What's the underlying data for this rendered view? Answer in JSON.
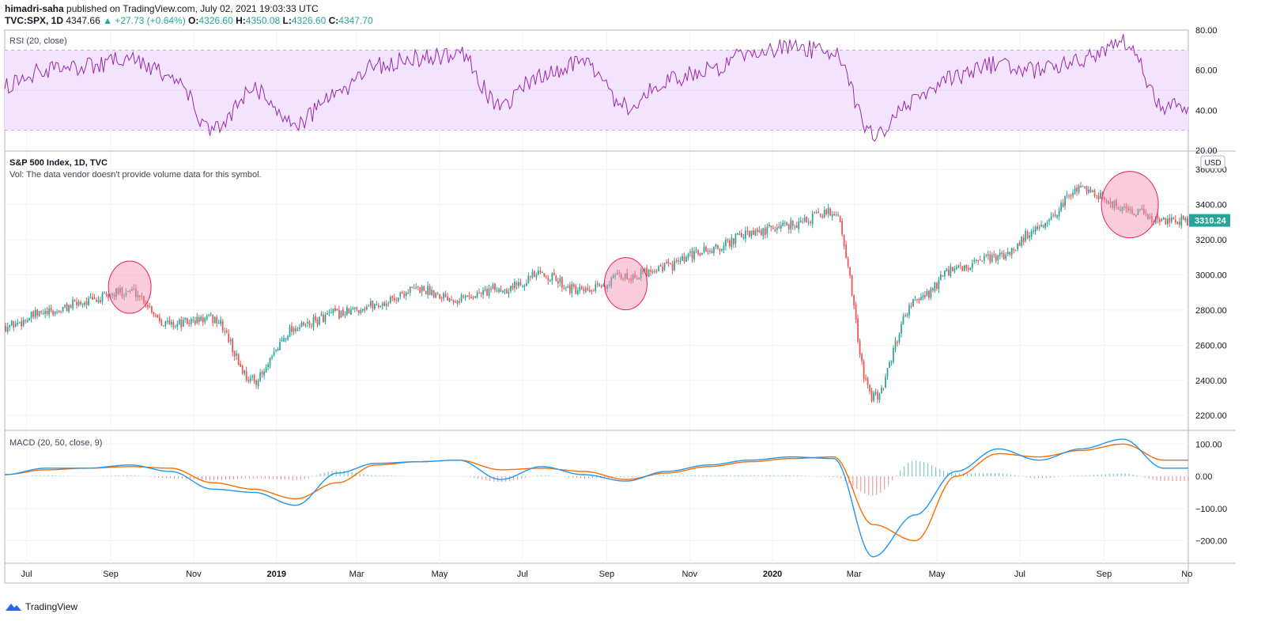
{
  "header": {
    "author": "himadri-saha",
    "published": "published on TradingView.com, July 02, 2021 19:03:33 UTC",
    "symbol": "TVC:SPX, 1D",
    "last": "4347.66",
    "change": "▲ +27.73 (+0.64%)",
    "o_label": "O:",
    "o": "4326.60",
    "h_label": "H:",
    "h": "4350.08",
    "l_label": "L:",
    "l": "4326.60",
    "c_label": "C:",
    "c": "4347.70"
  },
  "footer": {
    "brand": "TradingView",
    "brand_icon": "tradingview-logo-icon"
  },
  "colors": {
    "up": "#26a69a",
    "down": "#ef5350",
    "rsi_line": "#9c27b0",
    "rsi_band": "#f3e5ff",
    "macd_line": "#2196f3",
    "signal_line": "#ff6d00",
    "ellipse": "#f48fb1",
    "price_badge": "#26a69a"
  },
  "chart_data": [
    {
      "type": "line",
      "title": "RSI (20, close)",
      "yticks": [
        "80.00",
        "60.00",
        "40.00",
        "20.00"
      ],
      "ylim": [
        20,
        80
      ],
      "bands": [
        30,
        70
      ],
      "grid": true,
      "x": [
        "2018-06",
        "2018-07",
        "2018-08",
        "2018-09",
        "2018-10",
        "2018-11",
        "2018-12",
        "2019-01",
        "2019-02",
        "2019-03",
        "2019-04",
        "2019-05",
        "2019-06",
        "2019-07",
        "2019-08",
        "2019-09",
        "2019-10",
        "2019-11",
        "2019-12",
        "2020-01",
        "2020-02",
        "2020-03",
        "2020-04",
        "2020-05",
        "2020-06",
        "2020-07",
        "2020-08",
        "2020-09",
        "2020-10"
      ],
      "series": [
        {
          "values": [
            52,
            60,
            62,
            66,
            58,
            30,
            50,
            33,
            48,
            62,
            66,
            68,
            42,
            58,
            64,
            42,
            55,
            60,
            68,
            72,
            68,
            28,
            45,
            56,
            63,
            60,
            65,
            75,
            42
          ]
        }
      ]
    },
    {
      "type": "line",
      "title": "S&P 500 Index, 1D, TVC",
      "subtitle": "Vol: The data vendor doesn't provide volume data for this symbol.",
      "currency": "USD",
      "last_price": "3310.24",
      "yticks": [
        "3600.00",
        "3400.00",
        "3200.00",
        "3000.00",
        "2800.00",
        "2600.00",
        "2400.00",
        "2200.00"
      ],
      "ylim": [
        2120,
        3700
      ],
      "grid": true,
      "x": [
        "2018-06",
        "2018-07",
        "2018-08",
        "2018-09",
        "2018-10",
        "2018-11",
        "2018-12",
        "2019-01",
        "2019-02",
        "2019-03",
        "2019-04",
        "2019-05",
        "2019-06",
        "2019-07",
        "2019-08",
        "2019-09",
        "2019-10",
        "2019-11",
        "2019-12",
        "2020-01",
        "2020-02",
        "2020-03",
        "2020-04",
        "2020-05",
        "2020-06",
        "2020-07",
        "2020-08",
        "2020-09",
        "2020-10"
      ],
      "series": [
        {
          "values": [
            2710,
            2780,
            2850,
            2910,
            2720,
            2750,
            2400,
            2700,
            2780,
            2830,
            2920,
            2870,
            2920,
            3000,
            2900,
            2990,
            3050,
            3140,
            3230,
            3290,
            3360,
            2300,
            2850,
            3030,
            3100,
            3260,
            3500,
            3380,
            3310
          ]
        }
      ],
      "annotations": [
        {
          "shape": "ellipse",
          "date": "2018-09-15",
          "center_price": 2930
        },
        {
          "shape": "ellipse",
          "date": "2019-09-15",
          "center_price": 2950
        },
        {
          "shape": "ellipse",
          "date": "2020-09-20",
          "center_price": 3400
        }
      ]
    },
    {
      "type": "line",
      "title": "MACD (20, 50, close, 9)",
      "yticks": [
        "100.00",
        "0.00",
        "−100.00",
        "−200.00"
      ],
      "ylim": [
        -270,
        140
      ],
      "grid": true,
      "x": [
        "2018-06",
        "2018-07",
        "2018-08",
        "2018-09",
        "2018-10",
        "2018-11",
        "2018-12",
        "2019-01",
        "2019-02",
        "2019-03",
        "2019-04",
        "2019-05",
        "2019-06",
        "2019-07",
        "2019-08",
        "2019-09",
        "2019-10",
        "2019-11",
        "2019-12",
        "2020-01",
        "2020-02",
        "2020-03",
        "2020-04",
        "2020-05",
        "2020-06",
        "2020-07",
        "2020-08",
        "2020-09",
        "2020-10"
      ],
      "series": [
        {
          "values": [
            5,
            25,
            25,
            35,
            15,
            -40,
            -50,
            -90,
            10,
            40,
            45,
            50,
            -10,
            30,
            5,
            -15,
            15,
            35,
            50,
            60,
            55,
            -250,
            -120,
            15,
            85,
            50,
            85,
            115,
            25
          ]
        },
        {
          "values": [
            5,
            20,
            25,
            30,
            25,
            -20,
            -40,
            -70,
            -20,
            35,
            45,
            50,
            20,
            25,
            15,
            -10,
            10,
            30,
            45,
            55,
            60,
            -150,
            -200,
            0,
            70,
            60,
            80,
            100,
            50
          ]
        }
      ]
    }
  ],
  "xaxis": {
    "ticks": [
      "Jul",
      "Sep",
      "Nov",
      "2019",
      "Mar",
      "May",
      "Jul",
      "Sep",
      "Nov",
      "2020",
      "Mar",
      "May",
      "Jul",
      "Sep",
      "No"
    ]
  }
}
